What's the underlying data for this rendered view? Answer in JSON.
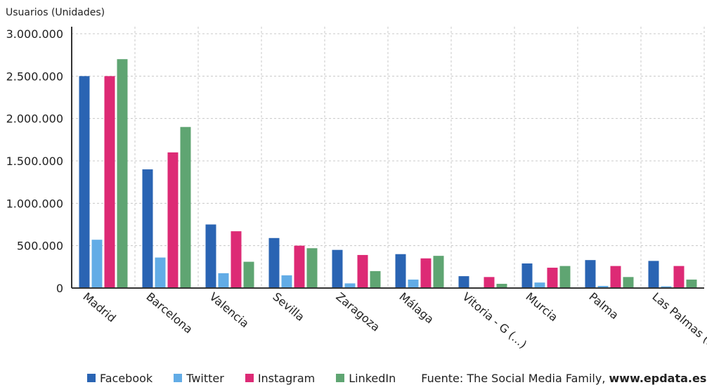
{
  "chart_data": {
    "type": "bar",
    "ylabel": "Usuarios (Unidades)",
    "ylim": [
      0,
      3000000
    ],
    "yticks": [
      "0",
      "500.000",
      "1.000.000",
      "1.500.000",
      "2.000.000",
      "2.500.000",
      "3.000.000"
    ],
    "ytick_values": [
      0,
      500000,
      1000000,
      1500000,
      2000000,
      2500000,
      3000000
    ],
    "categories": [
      "Madrid",
      "Barcelona",
      "Valencia",
      "Sevilla",
      "Zaragoza",
      "Málaga",
      "Vitoria - G (...)",
      "Murcia",
      "Palma",
      "Las Palmas (...)"
    ],
    "series": [
      {
        "name": "Facebook",
        "color": "#2a64b3",
        "values": [
          2500000,
          1400000,
          750000,
          590000,
          450000,
          400000,
          140000,
          290000,
          330000,
          320000
        ]
      },
      {
        "name": "Twitter",
        "color": "#62ace6",
        "values": [
          570000,
          360000,
          175000,
          150000,
          55000,
          100000,
          5000,
          65000,
          25000,
          20000
        ]
      },
      {
        "name": "Instagram",
        "color": "#dd2a75",
        "values": [
          2500000,
          1600000,
          670000,
          500000,
          390000,
          350000,
          130000,
          240000,
          260000,
          260000
        ]
      },
      {
        "name": "LinkedIn",
        "color": "#5fa572",
        "values": [
          2700000,
          1900000,
          310000,
          470000,
          200000,
          380000,
          50000,
          260000,
          130000,
          100000
        ]
      }
    ],
    "grid": true,
    "legend_position": "bottom"
  },
  "footer": {
    "source_prefix": "Fuente: The Social Media Family, ",
    "source_link": "www.epdata.es"
  }
}
